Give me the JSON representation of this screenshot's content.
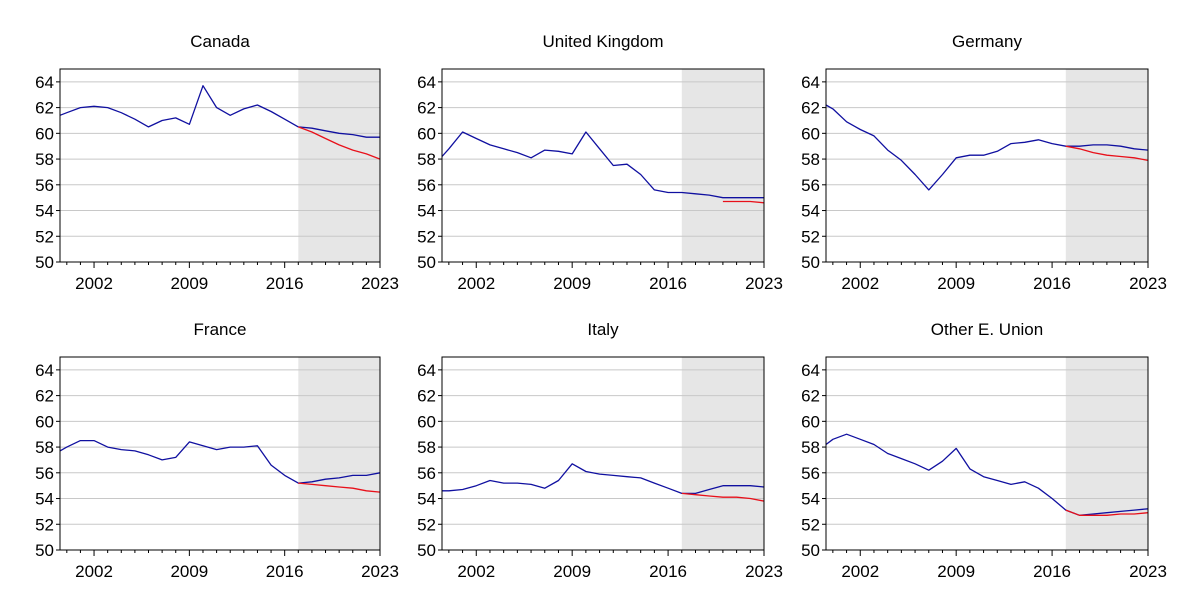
{
  "chart_data": [
    {
      "type": "line",
      "title": "Canada",
      "xticks": [
        "2002",
        "2009",
        "2016",
        "2023"
      ],
      "yticks": [
        50,
        52,
        54,
        56,
        58,
        60,
        62,
        64
      ],
      "xlim": [
        1999.5,
        2023
      ],
      "ylim": [
        50,
        65
      ],
      "shaded_range": [
        2017,
        2023
      ],
      "series": [
        {
          "color": "#1010a0",
          "points": [
            [
              1999.5,
              61.4
            ],
            [
              2000,
              61.6
            ],
            [
              2001,
              62.0
            ],
            [
              2002,
              62.1
            ],
            [
              2003,
              62.0
            ],
            [
              2004,
              61.6
            ],
            [
              2005,
              61.1
            ],
            [
              2006,
              60.5
            ],
            [
              2007,
              61.0
            ],
            [
              2008,
              61.2
            ],
            [
              2009,
              60.7
            ],
            [
              2010,
              63.7
            ],
            [
              2011,
              62.0
            ],
            [
              2012,
              61.4
            ],
            [
              2013,
              61.9
            ],
            [
              2014,
              62.2
            ],
            [
              2015,
              61.7
            ],
            [
              2016,
              61.1
            ],
            [
              2017,
              60.5
            ],
            [
              2018,
              60.4
            ],
            [
              2019,
              60.2
            ],
            [
              2020,
              60.0
            ],
            [
              2021,
              59.9
            ],
            [
              2022,
              59.7
            ],
            [
              2023,
              59.7
            ]
          ]
        },
        {
          "color": "#e8101a",
          "points": [
            [
              2017,
              60.5
            ],
            [
              2018,
              60.1
            ],
            [
              2019,
              59.6
            ],
            [
              2020,
              59.1
            ],
            [
              2021,
              58.7
            ],
            [
              2022,
              58.4
            ],
            [
              2023,
              58.0
            ]
          ]
        }
      ]
    },
    {
      "type": "line",
      "title": "United Kingdom",
      "xticks": [
        "2002",
        "2009",
        "2016",
        "2023"
      ],
      "yticks": [
        50,
        52,
        54,
        56,
        58,
        60,
        62,
        64
      ],
      "xlim": [
        1999.5,
        2023
      ],
      "ylim": [
        50,
        65
      ],
      "shaded_range": [
        2017,
        2023
      ],
      "series": [
        {
          "color": "#1010a0",
          "points": [
            [
              1999.5,
              58.2
            ],
            [
              2000,
              58.8
            ],
            [
              2001,
              60.1
            ],
            [
              2002,
              59.6
            ],
            [
              2003,
              59.1
            ],
            [
              2004,
              58.8
            ],
            [
              2005,
              58.5
            ],
            [
              2006,
              58.1
            ],
            [
              2007,
              58.7
            ],
            [
              2008,
              58.6
            ],
            [
              2009,
              58.4
            ],
            [
              2010,
              60.1
            ],
            [
              2011,
              58.8
            ],
            [
              2012,
              57.5
            ],
            [
              2013,
              57.6
            ],
            [
              2014,
              56.8
            ],
            [
              2015,
              55.6
            ],
            [
              2016,
              55.4
            ],
            [
              2017,
              55.4
            ],
            [
              2018,
              55.3
            ],
            [
              2019,
              55.2
            ],
            [
              2020,
              55.0
            ],
            [
              2021,
              55.0
            ],
            [
              2022,
              55.0
            ],
            [
              2023,
              55.0
            ]
          ]
        },
        {
          "color": "#e8101a",
          "points": [
            [
              2020,
              54.7
            ],
            [
              2021,
              54.7
            ],
            [
              2022,
              54.7
            ],
            [
              2023,
              54.6
            ]
          ]
        }
      ]
    },
    {
      "type": "line",
      "title": "Germany",
      "xticks": [
        "2002",
        "2009",
        "2016",
        "2023"
      ],
      "yticks": [
        50,
        52,
        54,
        56,
        58,
        60,
        62,
        64
      ],
      "xlim": [
        1999.5,
        2023
      ],
      "ylim": [
        50,
        65
      ],
      "shaded_range": [
        2017,
        2023
      ],
      "series": [
        {
          "color": "#1010a0",
          "points": [
            [
              1999.5,
              62.2
            ],
            [
              2000,
              61.9
            ],
            [
              2001,
              60.9
            ],
            [
              2002,
              60.3
            ],
            [
              2003,
              59.8
            ],
            [
              2004,
              58.7
            ],
            [
              2005,
              57.9
            ],
            [
              2006,
              56.8
            ],
            [
              2007,
              55.6
            ],
            [
              2008,
              56.8
            ],
            [
              2009,
              58.1
            ],
            [
              2010,
              58.3
            ],
            [
              2011,
              58.3
            ],
            [
              2012,
              58.6
            ],
            [
              2013,
              59.2
            ],
            [
              2014,
              59.3
            ],
            [
              2015,
              59.5
            ],
            [
              2016,
              59.2
            ],
            [
              2017,
              59.0
            ],
            [
              2018,
              59.0
            ],
            [
              2019,
              59.1
            ],
            [
              2020,
              59.1
            ],
            [
              2021,
              59.0
            ],
            [
              2022,
              58.8
            ],
            [
              2023,
              58.7
            ]
          ]
        },
        {
          "color": "#e8101a",
          "points": [
            [
              2017,
              59.0
            ],
            [
              2018,
              58.8
            ],
            [
              2019,
              58.5
            ],
            [
              2020,
              58.3
            ],
            [
              2021,
              58.2
            ],
            [
              2022,
              58.1
            ],
            [
              2023,
              57.9
            ]
          ]
        }
      ]
    },
    {
      "type": "line",
      "title": "France",
      "xticks": [
        "2002",
        "2009",
        "2016",
        "2023"
      ],
      "yticks": [
        50,
        52,
        54,
        56,
        58,
        60,
        62,
        64
      ],
      "xlim": [
        1999.5,
        2023
      ],
      "ylim": [
        50,
        65
      ],
      "shaded_range": [
        2017,
        2023
      ],
      "series": [
        {
          "color": "#1010a0",
          "points": [
            [
              1999.5,
              57.7
            ],
            [
              2000,
              58.0
            ],
            [
              2001,
              58.5
            ],
            [
              2002,
              58.5
            ],
            [
              2003,
              58.0
            ],
            [
              2004,
              57.8
            ],
            [
              2005,
              57.7
            ],
            [
              2006,
              57.4
            ],
            [
              2007,
              57.0
            ],
            [
              2008,
              57.2
            ],
            [
              2009,
              58.4
            ],
            [
              2010,
              58.1
            ],
            [
              2011,
              57.8
            ],
            [
              2012,
              58.0
            ],
            [
              2013,
              58.0
            ],
            [
              2014,
              58.1
            ],
            [
              2015,
              56.6
            ],
            [
              2016,
              55.8
            ],
            [
              2017,
              55.2
            ],
            [
              2018,
              55.3
            ],
            [
              2019,
              55.5
            ],
            [
              2020,
              55.6
            ],
            [
              2021,
              55.8
            ],
            [
              2022,
              55.8
            ],
            [
              2023,
              56.0
            ]
          ]
        },
        {
          "color": "#e8101a",
          "points": [
            [
              2017,
              55.2
            ],
            [
              2018,
              55.1
            ],
            [
              2019,
              55.0
            ],
            [
              2020,
              54.9
            ],
            [
              2021,
              54.8
            ],
            [
              2022,
              54.6
            ],
            [
              2023,
              54.5
            ]
          ]
        }
      ]
    },
    {
      "type": "line",
      "title": "Italy",
      "xticks": [
        "2002",
        "2009",
        "2016",
        "2023"
      ],
      "yticks": [
        50,
        52,
        54,
        56,
        58,
        60,
        62,
        64
      ],
      "xlim": [
        1999.5,
        2023
      ],
      "ylim": [
        50,
        65
      ],
      "shaded_range": [
        2017,
        2023
      ],
      "series": [
        {
          "color": "#1010a0",
          "points": [
            [
              1999.5,
              54.6
            ],
            [
              2000,
              54.6
            ],
            [
              2001,
              54.7
            ],
            [
              2002,
              55.0
            ],
            [
              2003,
              55.4
            ],
            [
              2004,
              55.2
            ],
            [
              2005,
              55.2
            ],
            [
              2006,
              55.1
            ],
            [
              2007,
              54.8
            ],
            [
              2008,
              55.4
            ],
            [
              2009,
              56.7
            ],
            [
              2010,
              56.1
            ],
            [
              2011,
              55.9
            ],
            [
              2012,
              55.8
            ],
            [
              2013,
              55.7
            ],
            [
              2014,
              55.6
            ],
            [
              2015,
              55.2
            ],
            [
              2016,
              54.8
            ],
            [
              2017,
              54.4
            ],
            [
              2018,
              54.4
            ],
            [
              2019,
              54.7
            ],
            [
              2020,
              55.0
            ],
            [
              2021,
              55.0
            ],
            [
              2022,
              55.0
            ],
            [
              2023,
              54.9
            ]
          ]
        },
        {
          "color": "#e8101a",
          "points": [
            [
              2017,
              54.4
            ],
            [
              2018,
              54.3
            ],
            [
              2019,
              54.2
            ],
            [
              2020,
              54.1
            ],
            [
              2021,
              54.1
            ],
            [
              2022,
              54.0
            ],
            [
              2023,
              53.8
            ]
          ]
        }
      ]
    },
    {
      "type": "line",
      "title": "Other E. Union",
      "xticks": [
        "2002",
        "2009",
        "2016",
        "2023"
      ],
      "yticks": [
        50,
        52,
        54,
        56,
        58,
        60,
        62,
        64
      ],
      "xlim": [
        1999.5,
        2023
      ],
      "ylim": [
        50,
        65
      ],
      "shaded_range": [
        2017,
        2023
      ],
      "series": [
        {
          "color": "#1010a0",
          "points": [
            [
              1999.5,
              58.2
            ],
            [
              2000,
              58.6
            ],
            [
              2001,
              59.0
            ],
            [
              2002,
              58.6
            ],
            [
              2003,
              58.2
            ],
            [
              2004,
              57.5
            ],
            [
              2005,
              57.1
            ],
            [
              2006,
              56.7
            ],
            [
              2007,
              56.2
            ],
            [
              2008,
              56.9
            ],
            [
              2009,
              57.9
            ],
            [
              2010,
              56.3
            ],
            [
              2011,
              55.7
            ],
            [
              2012,
              55.4
            ],
            [
              2013,
              55.1
            ],
            [
              2014,
              55.3
            ],
            [
              2015,
              54.8
            ],
            [
              2016,
              54.0
            ],
            [
              2017,
              53.1
            ],
            [
              2018,
              52.7
            ],
            [
              2019,
              52.8
            ],
            [
              2020,
              52.9
            ],
            [
              2021,
              53.0
            ],
            [
              2022,
              53.1
            ],
            [
              2023,
              53.2
            ]
          ]
        },
        {
          "color": "#e8101a",
          "points": [
            [
              2017,
              53.1
            ],
            [
              2018,
              52.7
            ],
            [
              2019,
              52.7
            ],
            [
              2020,
              52.7
            ],
            [
              2021,
              52.8
            ],
            [
              2022,
              52.8
            ],
            [
              2023,
              52.9
            ]
          ]
        }
      ]
    }
  ]
}
